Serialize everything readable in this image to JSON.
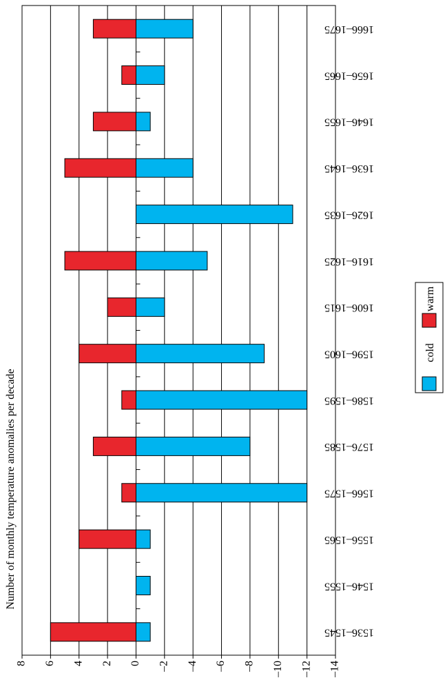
{
  "chart_data": {
    "type": "bar",
    "orientation": "rotated",
    "title": "",
    "ylabel": "Number of monthly temperature anomalies per decade",
    "xlabel": "",
    "ylim": [
      -14,
      8
    ],
    "yticks": [
      8,
      6,
      4,
      2,
      0,
      -2,
      -4,
      -6,
      -8,
      -10,
      -12,
      -14
    ],
    "ytick_labels": [
      "8",
      "6",
      "4",
      "2",
      "0",
      "–2",
      "–4",
      "–6",
      "–8",
      "–10",
      "–12",
      "–14"
    ],
    "grid": true,
    "categories": [
      "1536–1545",
      "1546–1555",
      "1556–1565",
      "1566–1575",
      "1576–1585",
      "1586–1595",
      "1596–1605",
      "1606–1615",
      "1616–1625",
      "1626–1635",
      "1636–1645",
      "1646–1655",
      "1656–1665",
      "1666–1675"
    ],
    "series": [
      {
        "name": "cold",
        "color": "#00b4ef",
        "values": [
          -1,
          -1,
          -1,
          -12,
          -8,
          -12,
          -9,
          -2,
          -5,
          -11,
          -4,
          -1,
          -2,
          -4
        ]
      },
      {
        "name": "warm",
        "color": "#e8262d",
        "values": [
          6,
          0,
          4,
          1,
          3,
          1,
          4,
          2,
          5,
          0,
          5,
          3,
          1,
          3
        ]
      }
    ],
    "legend": {
      "placement": "right",
      "entries": [
        "cold",
        "warm"
      ]
    }
  }
}
